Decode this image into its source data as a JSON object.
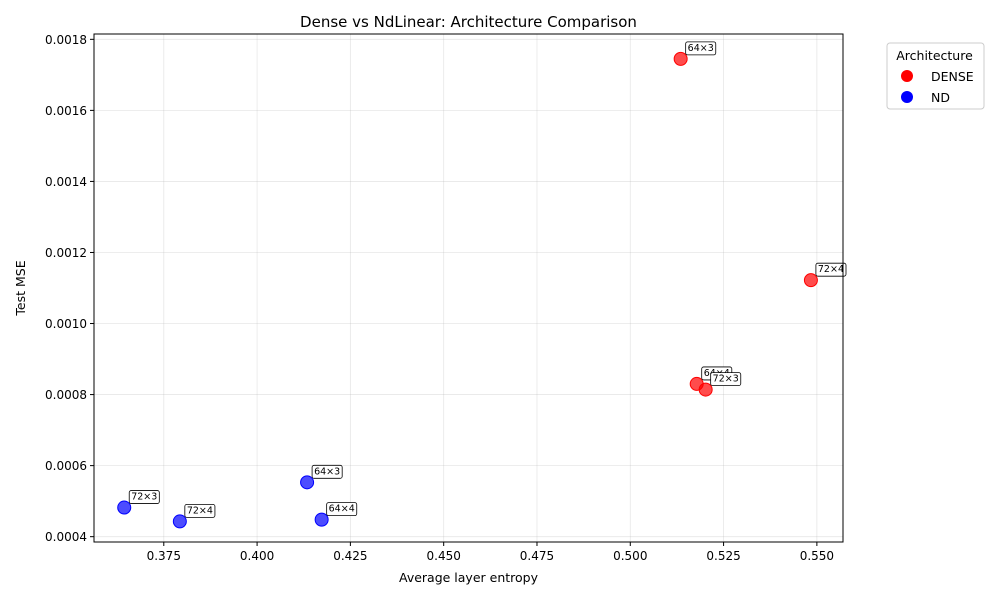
{
  "chart_data": {
    "type": "scatter",
    "title": "Dense vs NdLinear: Architecture Comparison",
    "xlabel": "Average layer entropy",
    "ylabel": "Test MSE",
    "xlim": [
      0.3563,
      0.557
    ],
    "ylim": [
      0.000385,
      0.001815
    ],
    "xticks": [
      "0.375",
      "0.400",
      "0.425",
      "0.450",
      "0.475",
      "0.500",
      "0.525",
      "0.550"
    ],
    "xtick_values": [
      0.375,
      0.4,
      0.425,
      0.45,
      0.475,
      0.5,
      0.525,
      0.55
    ],
    "yticks": [
      "0.0004",
      "0.0006",
      "0.0008",
      "0.0010",
      "0.0012",
      "0.0014",
      "0.0016",
      "0.0018"
    ],
    "ytick_values": [
      0.0004,
      0.0006,
      0.0008,
      0.001,
      0.0012,
      0.0014,
      0.0016,
      0.0018
    ],
    "grid": true,
    "legend": {
      "title": "Architecture",
      "placement": "outside-top-right",
      "entries": [
        {
          "label": "DENSE",
          "color": "#ff0000"
        },
        {
          "label": "ND",
          "color": "#0000ff"
        }
      ]
    },
    "series": [
      {
        "name": "DENSE",
        "color": "#ff0000",
        "points": [
          {
            "x": 0.5135,
            "y": 0.001745,
            "label": "64×3"
          },
          {
            "x": 0.5484,
            "y": 0.001122,
            "label": "72×4"
          },
          {
            "x": 0.5178,
            "y": 0.00083,
            "label": "64×4"
          },
          {
            "x": 0.5202,
            "y": 0.000814,
            "label": "72×3"
          }
        ]
      },
      {
        "name": "ND",
        "color": "#0000ff",
        "points": [
          {
            "x": 0.4134,
            "y": 0.000553,
            "label": "64×3"
          },
          {
            "x": 0.3644,
            "y": 0.000482,
            "label": "72×3"
          },
          {
            "x": 0.3793,
            "y": 0.000443,
            "label": "72×4"
          },
          {
            "x": 0.4173,
            "y": 0.000448,
            "label": "64×4"
          }
        ]
      }
    ]
  }
}
